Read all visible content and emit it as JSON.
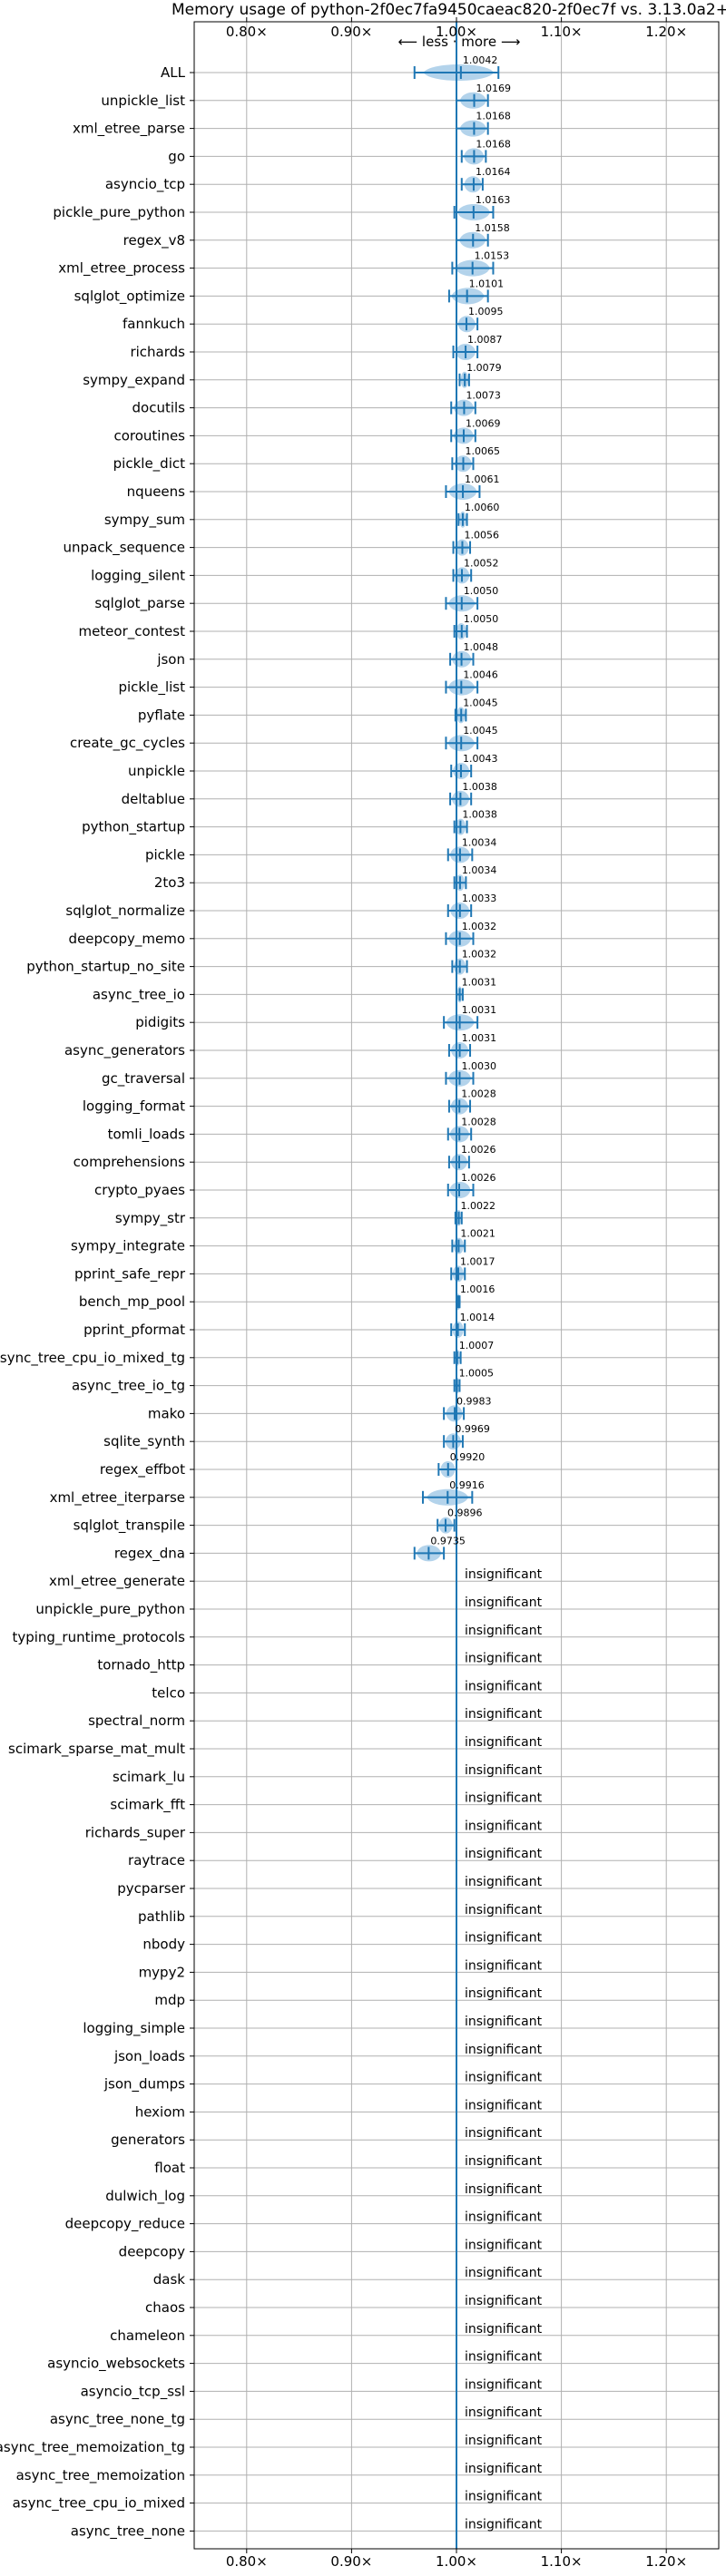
{
  "chart_data": {
    "type": "scatter",
    "title": "Memory usage of python-2f0ec7fa9450caeac820-2f0ec7f vs. 3.13.0a2+",
    "xlim": [
      0.75,
      1.25
    ],
    "xticks": [
      0.8,
      0.9,
      1.0,
      1.1,
      1.2
    ],
    "xtick_labels": [
      "0.80×",
      "0.90×",
      "1.00×",
      "1.10×",
      "1.20×"
    ],
    "direction_label": "⟵ less · more ⟶",
    "grid": true,
    "insignificant_label": "insignificant",
    "colors": {
      "line": "#1f77b4",
      "violin": "#a6cbe8",
      "grid": "#b0b0b0"
    },
    "benchmarks": [
      {
        "name": "ALL",
        "value": 1.0042,
        "label": "1.0042",
        "lo": 0.96,
        "hi": 1.04
      },
      {
        "name": "unpickle_list",
        "value": 1.0169,
        "label": "1.0169",
        "lo": 1.0,
        "hi": 1.03
      },
      {
        "name": "xml_etree_parse",
        "value": 1.0168,
        "label": "1.0168",
        "lo": 1.0,
        "hi": 1.03
      },
      {
        "name": "go",
        "value": 1.0168,
        "label": "1.0168",
        "lo": 1.005,
        "hi": 1.028
      },
      {
        "name": "asyncio_tcp",
        "value": 1.0164,
        "label": "1.0164",
        "lo": 1.005,
        "hi": 1.025
      },
      {
        "name": "pickle_pure_python",
        "value": 1.0163,
        "label": "1.0163",
        "lo": 0.998,
        "hi": 1.035
      },
      {
        "name": "regex_v8",
        "value": 1.0158,
        "label": "1.0158",
        "lo": 1.0,
        "hi": 1.03
      },
      {
        "name": "xml_etree_process",
        "value": 1.0153,
        "label": "1.0153",
        "lo": 0.996,
        "hi": 1.035
      },
      {
        "name": "sqlglot_optimize",
        "value": 1.0101,
        "label": "1.0101",
        "lo": 0.993,
        "hi": 1.03
      },
      {
        "name": "fannkuch",
        "value": 1.0095,
        "label": "1.0095",
        "lo": 1.0,
        "hi": 1.02
      },
      {
        "name": "richards",
        "value": 1.0087,
        "label": "1.0087",
        "lo": 0.997,
        "hi": 1.02
      },
      {
        "name": "sympy_expand",
        "value": 1.0079,
        "label": "1.0079",
        "lo": 1.003,
        "hi": 1.012
      },
      {
        "name": "docutils",
        "value": 1.0073,
        "label": "1.0073",
        "lo": 0.995,
        "hi": 1.018
      },
      {
        "name": "coroutines",
        "value": 1.0069,
        "label": "1.0069",
        "lo": 0.995,
        "hi": 1.018
      },
      {
        "name": "pickle_dict",
        "value": 1.0065,
        "label": "1.0065",
        "lo": 0.996,
        "hi": 1.016
      },
      {
        "name": "nqueens",
        "value": 1.0061,
        "label": "1.0061",
        "lo": 0.99,
        "hi": 1.022
      },
      {
        "name": "sympy_sum",
        "value": 1.006,
        "label": "1.0060",
        "lo": 1.002,
        "hi": 1.01
      },
      {
        "name": "unpack_sequence",
        "value": 1.0056,
        "label": "1.0056",
        "lo": 0.997,
        "hi": 1.013
      },
      {
        "name": "logging_silent",
        "value": 1.0052,
        "label": "1.0052",
        "lo": 0.997,
        "hi": 1.014
      },
      {
        "name": "sqlglot_parse",
        "value": 1.005,
        "label": "1.0050",
        "lo": 0.99,
        "hi": 1.02
      },
      {
        "name": "meteor_contest",
        "value": 1.005,
        "label": "1.0050",
        "lo": 0.998,
        "hi": 1.01
      },
      {
        "name": "json",
        "value": 1.0048,
        "label": "1.0048",
        "lo": 0.994,
        "hi": 1.016
      },
      {
        "name": "pickle_list",
        "value": 1.0046,
        "label": "1.0046",
        "lo": 0.99,
        "hi": 1.02
      },
      {
        "name": "pyflate",
        "value": 1.0045,
        "label": "1.0045",
        "lo": 0.999,
        "hi": 1.009
      },
      {
        "name": "create_gc_cycles",
        "value": 1.0045,
        "label": "1.0045",
        "lo": 0.99,
        "hi": 1.02
      },
      {
        "name": "unpickle",
        "value": 1.0043,
        "label": "1.0043",
        "lo": 0.995,
        "hi": 1.014
      },
      {
        "name": "deltablue",
        "value": 1.0038,
        "label": "1.0038",
        "lo": 0.994,
        "hi": 1.014
      },
      {
        "name": "python_startup",
        "value": 1.0038,
        "label": "1.0038",
        "lo": 0.998,
        "hi": 1.01
      },
      {
        "name": "pickle",
        "value": 1.0034,
        "label": "1.0034",
        "lo": 0.992,
        "hi": 1.015
      },
      {
        "name": "2to3",
        "value": 1.0034,
        "label": "1.0034",
        "lo": 0.998,
        "hi": 1.009
      },
      {
        "name": "sqlglot_normalize",
        "value": 1.0033,
        "label": "1.0033",
        "lo": 0.992,
        "hi": 1.014
      },
      {
        "name": "deepcopy_memo",
        "value": 1.0032,
        "label": "1.0032",
        "lo": 0.99,
        "hi": 1.016
      },
      {
        "name": "python_startup_no_site",
        "value": 1.0032,
        "label": "1.0032",
        "lo": 0.996,
        "hi": 1.01
      },
      {
        "name": "async_tree_io",
        "value": 1.0031,
        "label": "1.0031",
        "lo": 1.0,
        "hi": 1.006
      },
      {
        "name": "pidigits",
        "value": 1.0031,
        "label": "1.0031",
        "lo": 0.988,
        "hi": 1.02
      },
      {
        "name": "async_generators",
        "value": 1.0031,
        "label": "1.0031",
        "lo": 0.993,
        "hi": 1.013
      },
      {
        "name": "gc_traversal",
        "value": 1.003,
        "label": "1.0030",
        "lo": 0.99,
        "hi": 1.016
      },
      {
        "name": "logging_format",
        "value": 1.0028,
        "label": "1.0028",
        "lo": 0.993,
        "hi": 1.013
      },
      {
        "name": "tomli_loads",
        "value": 1.0028,
        "label": "1.0028",
        "lo": 0.992,
        "hi": 1.014
      },
      {
        "name": "comprehensions",
        "value": 1.0026,
        "label": "1.0026",
        "lo": 0.993,
        "hi": 1.012
      },
      {
        "name": "crypto_pyaes",
        "value": 1.0026,
        "label": "1.0026",
        "lo": 0.992,
        "hi": 1.016
      },
      {
        "name": "sympy_str",
        "value": 1.0022,
        "label": "1.0022",
        "lo": 0.999,
        "hi": 1.005
      },
      {
        "name": "sympy_integrate",
        "value": 1.0021,
        "label": "1.0021",
        "lo": 0.996,
        "hi": 1.008
      },
      {
        "name": "pprint_safe_repr",
        "value": 1.0017,
        "label": "1.0017",
        "lo": 0.995,
        "hi": 1.008
      },
      {
        "name": "bench_mp_pool",
        "value": 1.0016,
        "label": "1.0016",
        "lo": 1.0,
        "hi": 1.003
      },
      {
        "name": "pprint_pformat",
        "value": 1.0014,
        "label": "1.0014",
        "lo": 0.995,
        "hi": 1.008
      },
      {
        "name": "async_tree_cpu_io_mixed_tg",
        "value": 1.0007,
        "label": "1.0007",
        "lo": 0.998,
        "hi": 1.004
      },
      {
        "name": "async_tree_io_tg",
        "value": 1.0005,
        "label": "1.0005",
        "lo": 0.998,
        "hi": 1.003
      },
      {
        "name": "mako",
        "value": 0.9983,
        "label": "0.9983",
        "lo": 0.988,
        "hi": 1.007
      },
      {
        "name": "sqlite_synth",
        "value": 0.9969,
        "label": "0.9969",
        "lo": 0.988,
        "hi": 1.006
      },
      {
        "name": "regex_effbot",
        "value": 0.992,
        "label": "0.9920",
        "lo": 0.983,
        "hi": 1.0
      },
      {
        "name": "xml_etree_iterparse",
        "value": 0.9916,
        "label": "0.9916",
        "lo": 0.968,
        "hi": 1.015
      },
      {
        "name": "sqlglot_transpile",
        "value": 0.9896,
        "label": "0.9896",
        "lo": 0.982,
        "hi": 0.998
      },
      {
        "name": "regex_dna",
        "value": 0.9735,
        "label": "0.9735",
        "lo": 0.96,
        "hi": 0.988
      },
      {
        "name": "xml_etree_generate",
        "value": null,
        "label": "insignificant"
      },
      {
        "name": "unpickle_pure_python",
        "value": null,
        "label": "insignificant"
      },
      {
        "name": "typing_runtime_protocols",
        "value": null,
        "label": "insignificant"
      },
      {
        "name": "tornado_http",
        "value": null,
        "label": "insignificant"
      },
      {
        "name": "telco",
        "value": null,
        "label": "insignificant"
      },
      {
        "name": "spectral_norm",
        "value": null,
        "label": "insignificant"
      },
      {
        "name": "scimark_sparse_mat_mult",
        "value": null,
        "label": "insignificant"
      },
      {
        "name": "scimark_lu",
        "value": null,
        "label": "insignificant"
      },
      {
        "name": "scimark_fft",
        "value": null,
        "label": "insignificant"
      },
      {
        "name": "richards_super",
        "value": null,
        "label": "insignificant"
      },
      {
        "name": "raytrace",
        "value": null,
        "label": "insignificant"
      },
      {
        "name": "pycparser",
        "value": null,
        "label": "insignificant"
      },
      {
        "name": "pathlib",
        "value": null,
        "label": "insignificant"
      },
      {
        "name": "nbody",
        "value": null,
        "label": "insignificant"
      },
      {
        "name": "mypy2",
        "value": null,
        "label": "insignificant"
      },
      {
        "name": "mdp",
        "value": null,
        "label": "insignificant"
      },
      {
        "name": "logging_simple",
        "value": null,
        "label": "insignificant"
      },
      {
        "name": "json_loads",
        "value": null,
        "label": "insignificant"
      },
      {
        "name": "json_dumps",
        "value": null,
        "label": "insignificant"
      },
      {
        "name": "hexiom",
        "value": null,
        "label": "insignificant"
      },
      {
        "name": "generators",
        "value": null,
        "label": "insignificant"
      },
      {
        "name": "float",
        "value": null,
        "label": "insignificant"
      },
      {
        "name": "dulwich_log",
        "value": null,
        "label": "insignificant"
      },
      {
        "name": "deepcopy_reduce",
        "value": null,
        "label": "insignificant"
      },
      {
        "name": "deepcopy",
        "value": null,
        "label": "insignificant"
      },
      {
        "name": "dask",
        "value": null,
        "label": "insignificant"
      },
      {
        "name": "chaos",
        "value": null,
        "label": "insignificant"
      },
      {
        "name": "chameleon",
        "value": null,
        "label": "insignificant"
      },
      {
        "name": "asyncio_websockets",
        "value": null,
        "label": "insignificant"
      },
      {
        "name": "asyncio_tcp_ssl",
        "value": null,
        "label": "insignificant"
      },
      {
        "name": "async_tree_none_tg",
        "value": null,
        "label": "insignificant"
      },
      {
        "name": "async_tree_memoization_tg",
        "value": null,
        "label": "insignificant"
      },
      {
        "name": "async_tree_memoization",
        "value": null,
        "label": "insignificant"
      },
      {
        "name": "async_tree_cpu_io_mixed",
        "value": null,
        "label": "insignificant"
      },
      {
        "name": "async_tree_none",
        "value": null,
        "label": "insignificant"
      }
    ]
  }
}
